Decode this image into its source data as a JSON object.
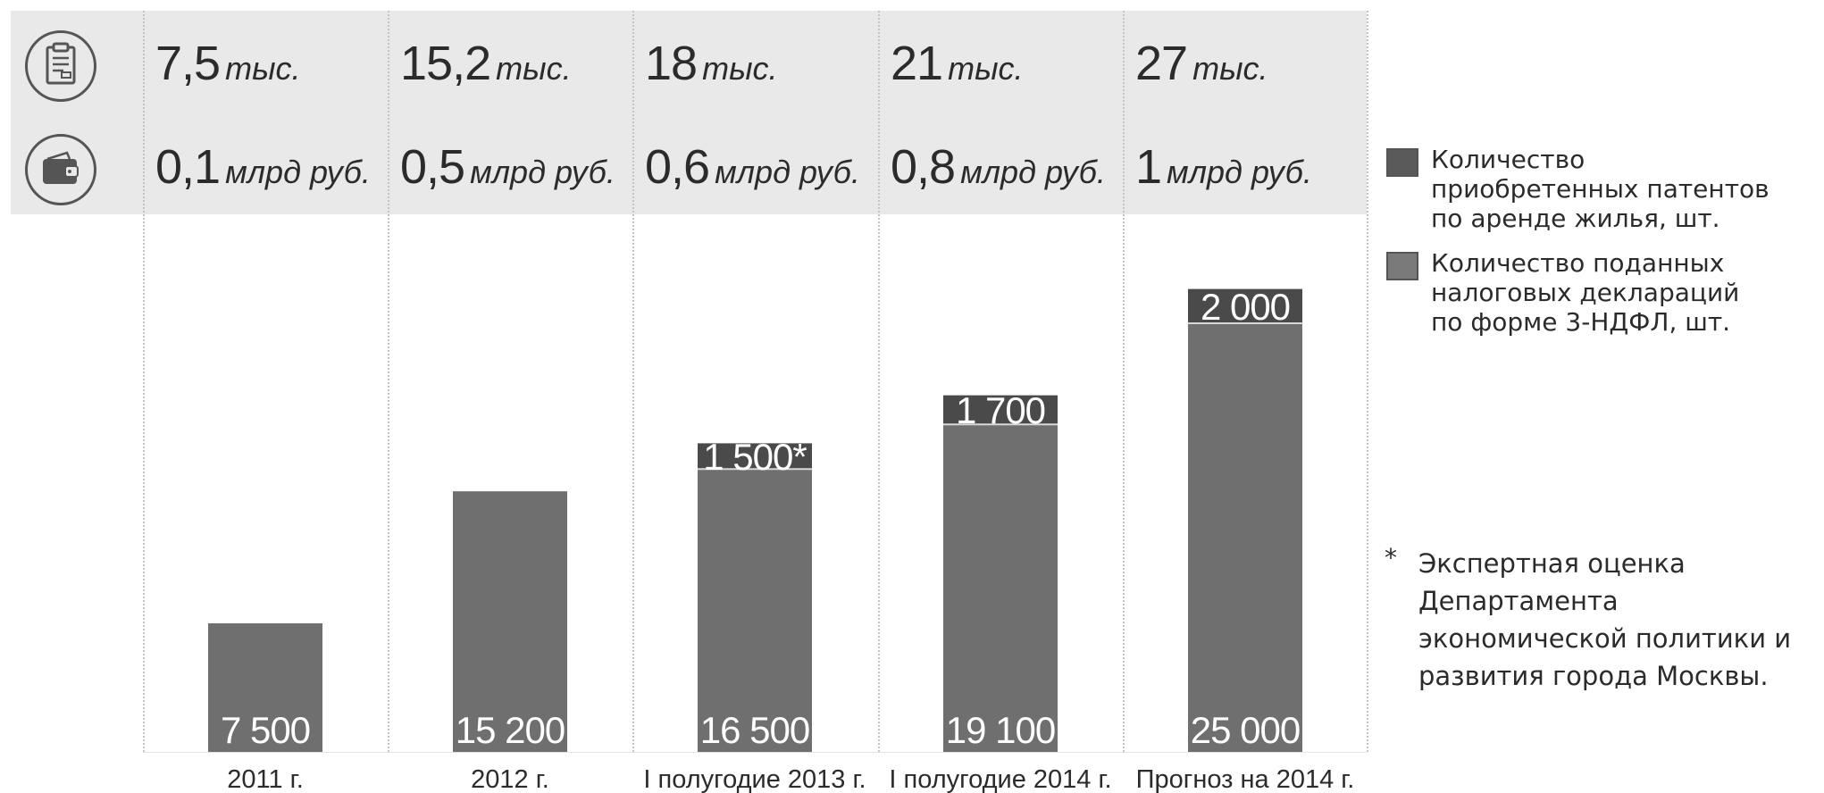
{
  "stats_rows": [
    {
      "icon": "clipboard-icon",
      "cells": [
        {
          "value": "7,5",
          "unit": "тыс."
        },
        {
          "value": "15,2",
          "unit": "тыс."
        },
        {
          "value": "18",
          "unit": "тыс."
        },
        {
          "value": "21",
          "unit": "тыс."
        },
        {
          "value": "27",
          "unit": "тыс."
        }
      ]
    },
    {
      "icon": "wallet-icon",
      "cells": [
        {
          "value": "0,1",
          "unit": "млрд руб."
        },
        {
          "value": "0,5",
          "unit": "млрд руб."
        },
        {
          "value": "0,6",
          "unit": "млрд руб."
        },
        {
          "value": "0,8",
          "unit": "млрд руб."
        },
        {
          "value": "1",
          "unit": "млрд руб."
        }
      ]
    }
  ],
  "legend": [
    {
      "label_lines": [
        "Количество",
        "приобретенных патентов",
        "по аренде жилья, шт."
      ],
      "color": "#5a5a5a"
    },
    {
      "label_lines": [
        "Количество поданных",
        "налоговых деклараций",
        "по форме 3-НДФЛ, шт."
      ],
      "color": "#7a7a7a"
    }
  ],
  "footnote": {
    "marker": "*",
    "text": "Экспертная оценка Департамента экономической политики и развития города Москвы."
  },
  "chart_data": {
    "type": "bar",
    "stacked": true,
    "categories": [
      "2011 г.",
      "2012 г.",
      "I полугодие 2013 г.",
      "I полугодие 2014 г.",
      "Прогноз на 2014 г."
    ],
    "series": [
      {
        "name": "Количество поданных налоговых деклараций по форме 3-НДФЛ, шт.",
        "values": [
          7500,
          15200,
          16500,
          19100,
          25000
        ],
        "labels": [
          "7 500",
          "15 200",
          "16 500",
          "19 100",
          "25 000"
        ],
        "color": "#6f6f6f"
      },
      {
        "name": "Количество приобретенных патентов по аренде жилья, шт.",
        "values": [
          null,
          null,
          1500,
          1700,
          2000
        ],
        "labels": [
          "",
          "",
          "1 500*",
          "1 700",
          "2 000"
        ],
        "color": "#4a4a4a"
      }
    ],
    "ylim": [
      0,
      30000
    ],
    "grid": false,
    "legend_position": "right"
  }
}
